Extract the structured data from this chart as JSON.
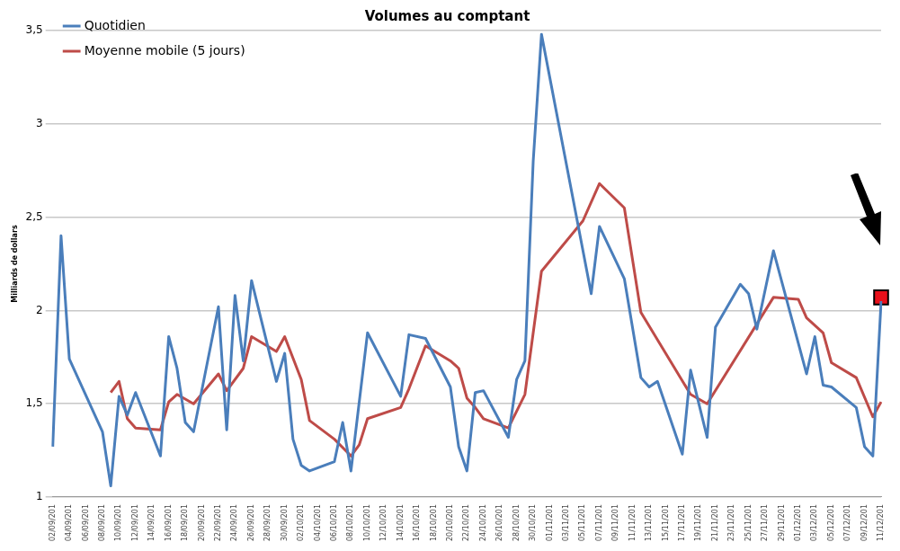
{
  "chart_data": {
    "type": "line",
    "title": "Volumes au comptant",
    "ylabel": "Milliards de dollars",
    "categories": [
      "02/09/201",
      null,
      "04/09/201",
      null,
      "06/09/201",
      null,
      "08/09/201",
      null,
      "10/09/201",
      null,
      "12/09/201",
      null,
      "14/09/201",
      null,
      "16/09/201",
      null,
      "18/09/201",
      null,
      "20/09/201",
      null,
      "22/09/201",
      null,
      "24/09/201",
      null,
      "26/09/201",
      null,
      "28/09/201",
      null,
      "30/09/201",
      null,
      "02/10/201",
      null,
      "04/10/201",
      null,
      "06/10/201",
      null,
      "08/10/201",
      null,
      "10/10/201",
      null,
      "12/10/201",
      null,
      "14/10/201",
      null,
      "16/10/201",
      null,
      "18/10/201",
      null,
      "20/10/201",
      null,
      "22/10/201",
      null,
      "24/10/201",
      null,
      "26/10/201",
      null,
      "28/10/201",
      null,
      "30/10/201",
      null,
      "01/11/201",
      null,
      "03/11/201",
      null,
      "05/11/201",
      null,
      "07/11/201",
      null,
      "09/11/201",
      null,
      "11/11/201",
      null,
      "13/11/201",
      null,
      "15/11/201",
      null,
      "17/11/201",
      null,
      "19/11/201",
      null,
      "21/11/201",
      null,
      "23/11/201",
      null,
      "25/11/201",
      null,
      "27/11/201",
      null,
      "29/11/201",
      null,
      "01/12/201",
      null,
      "03/12/201",
      null,
      "05/12/201",
      null,
      "07/12/201",
      null,
      "09/12/201",
      null,
      "11/12/201"
    ],
    "series": [
      {
        "name": "Quotidien",
        "color": "#4a7ebb",
        "values": [
          1.27,
          2.4,
          1.74,
          null,
          null,
          null,
          1.35,
          1.06,
          1.54,
          1.44,
          1.56,
          null,
          null,
          1.22,
          1.86,
          1.69,
          1.4,
          1.35,
          null,
          null,
          2.02,
          1.36,
          2.08,
          1.73,
          2.16,
          null,
          null,
          1.62,
          1.77,
          1.31,
          1.17,
          1.14,
          null,
          null,
          1.19,
          1.4,
          1.14,
          null,
          1.88,
          null,
          null,
          null,
          1.54,
          1.87,
          null,
          1.85,
          null,
          null,
          1.59,
          1.27,
          1.14,
          1.56,
          1.57,
          null,
          null,
          1.32,
          1.63,
          1.73,
          2.8,
          3.48,
          null,
          null,
          null,
          null,
          null,
          2.09,
          2.45,
          null,
          null,
          2.17,
          null,
          1.64,
          1.59,
          1.62,
          null,
          null,
          1.23,
          1.68,
          null,
          1.32,
          1.91,
          null,
          null,
          2.14,
          2.09,
          1.9,
          null,
          2.32,
          null,
          null,
          null,
          1.66,
          1.86,
          1.6,
          1.59,
          null,
          null,
          1.48,
          1.27,
          1.22,
          2.05
        ]
      },
      {
        "name": "Moyenne mobile (5 jours)",
        "color": "#be4b48",
        "values": [
          null,
          null,
          null,
          null,
          null,
          null,
          null,
          1.56,
          1.62,
          1.42,
          1.37,
          null,
          null,
          1.36,
          1.51,
          1.55,
          null,
          1.5,
          null,
          null,
          1.66,
          1.57,
          null,
          1.69,
          1.86,
          null,
          null,
          1.78,
          1.86,
          null,
          1.63,
          1.41,
          null,
          null,
          1.31,
          null,
          1.22,
          1.28,
          1.42,
          null,
          null,
          null,
          1.48,
          1.58,
          null,
          1.81,
          null,
          null,
          1.73,
          1.69,
          1.53,
          1.48,
          1.42,
          null,
          null,
          1.37,
          null,
          1.55,
          null,
          2.21,
          null,
          null,
          null,
          null,
          2.48,
          null,
          2.68,
          null,
          null,
          2.55,
          null,
          1.99,
          null,
          null,
          null,
          null,
          null,
          1.55,
          null,
          1.5,
          null,
          null,
          null,
          null,
          null,
          null,
          null,
          2.07,
          null,
          null,
          2.06,
          1.96,
          null,
          1.88,
          1.72,
          null,
          null,
          1.64,
          null,
          1.43,
          1.51
        ]
      },
      {
        "type": "scatter",
        "color": "#e8101a",
        "x": [
          "11/12/201"
        ],
        "values": [
          2.07
        ],
        "marker": "square"
      }
    ],
    "ylim": [
      1,
      3.5
    ],
    "yticks": [
      1,
      {
        "value": 1.5,
        "label": "1,5"
      },
      2,
      {
        "value": 2.5,
        "label": "2,5"
      },
      3,
      {
        "value": 3.5,
        "label": "3,5"
      }
    ],
    "grid": "y",
    "legend": "top left",
    "marker": "none"
  }
}
